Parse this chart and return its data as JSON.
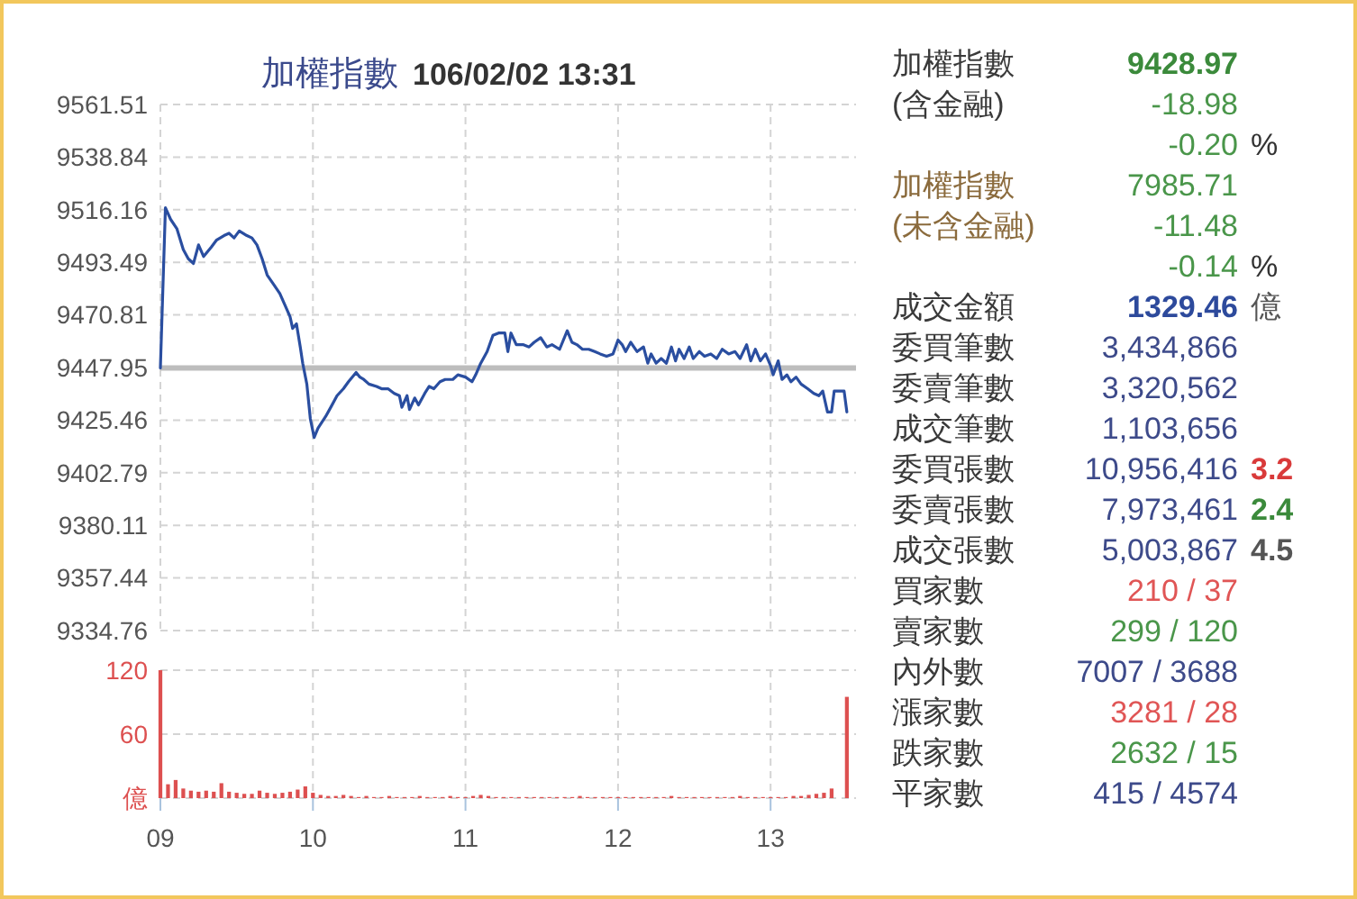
{
  "chart_data": [
    {
      "type": "line",
      "title": "加權指數",
      "subtitle": "106/02/02 13:31",
      "color": "#2a4ea0",
      "x": [
        9,
        9.033,
        9.067,
        9.108,
        9.15,
        9.183,
        9.217,
        9.25,
        9.283,
        9.333,
        9.367,
        9.417,
        9.45,
        9.483,
        9.517,
        9.567,
        9.6,
        9.633,
        9.667,
        9.7,
        9.742,
        9.783,
        9.817,
        9.85,
        9.867,
        9.892,
        9.917,
        9.933,
        9.96,
        9.983,
        10.008,
        10.033,
        10.083,
        10.117,
        10.158,
        10.2,
        10.233,
        10.283,
        10.308,
        10.333,
        10.367,
        10.417,
        10.45,
        10.492,
        10.533,
        10.567,
        10.583,
        10.617,
        10.633,
        10.667,
        10.692,
        10.733,
        10.762,
        10.793,
        10.833,
        10.867,
        10.917,
        10.95,
        11,
        11.043,
        11.067,
        11.1,
        11.142,
        11.18,
        11.217,
        11.258,
        11.278,
        11.298,
        11.333,
        11.377,
        11.417,
        11.45,
        11.493,
        11.533,
        11.567,
        11.617,
        11.667,
        11.698,
        11.73,
        11.767,
        11.808,
        11.847,
        11.883,
        11.925,
        11.967,
        12,
        12.027,
        12.05,
        12.083,
        12.125,
        12.167,
        12.195,
        12.217,
        12.25,
        12.283,
        12.317,
        12.35,
        12.377,
        12.4,
        12.433,
        12.467,
        12.493,
        12.533,
        12.567,
        12.608,
        12.647,
        12.683,
        12.725,
        12.767,
        12.8,
        12.843,
        12.87,
        12.9,
        12.933,
        12.967,
        13,
        13.017,
        13.05,
        13.075,
        13.107,
        13.133,
        13.167,
        13.2,
        13.243,
        13.283,
        13.317,
        13.342,
        13.373,
        13.4,
        13.417,
        13.482,
        13.5
      ],
      "values": [
        9448,
        9517,
        9512,
        9508,
        9499,
        9495,
        9493,
        9501,
        9496,
        9500,
        9503,
        9505,
        9506,
        9504,
        9507,
        9505,
        9504,
        9501,
        9495,
        9488,
        9484,
        9480,
        9475,
        9470,
        9465,
        9467,
        9457,
        9450,
        9441,
        9426,
        9418,
        9422,
        9427,
        9431,
        9436,
        9439,
        9442,
        9446,
        9444,
        9443,
        9441,
        9440,
        9439,
        9439,
        9437,
        9436,
        9431,
        9436,
        9430,
        9435,
        9432,
        9437,
        9440,
        9439,
        9442,
        9443,
        9443,
        9445,
        9444,
        9442,
        9445,
        9450,
        9455,
        9462,
        9463,
        9463,
        9455,
        9463,
        9458,
        9458,
        9457,
        9459,
        9461,
        9457,
        9458,
        9456,
        9464,
        9459,
        9458,
        9456,
        9456,
        9455,
        9454,
        9453,
        9454,
        9460,
        9458,
        9455,
        9459,
        9455,
        9457,
        9450,
        9454,
        9450,
        9452,
        9450,
        9457,
        9451,
        9456,
        9452,
        9457,
        9452,
        9455,
        9453,
        9454,
        9452,
        9456,
        9454,
        9455,
        9452,
        9458,
        9451,
        9456,
        9451,
        9454,
        9449,
        9445,
        9451,
        9443,
        9445,
        9442,
        9444,
        9441,
        9439,
        9437,
        9436,
        9438,
        9429,
        9429,
        9438,
        9438,
        9429
      ],
      "xlim": [
        9,
        13.56
      ],
      "ylim": [
        9334.76,
        9561.51
      ],
      "xticks": [
        9,
        10,
        11,
        12,
        13
      ],
      "yticks": [
        9334.76,
        9357.44,
        9380.11,
        9402.79,
        9425.46,
        9447.95,
        9470.81,
        9493.49,
        9516.16,
        9538.84,
        9561.51
      ],
      "tick_labels": "y",
      "grid": true,
      "ref_lines": [
        {
          "axis": "y",
          "value": 9447.95,
          "color": "#bdbdbd"
        }
      ]
    },
    {
      "type": "bar",
      "color": "#dd5050",
      "x": [
        9,
        9.05,
        9.1,
        9.15,
        9.2,
        9.25,
        9.3,
        9.35,
        9.4,
        9.45,
        9.5,
        9.55,
        9.6,
        9.65,
        9.7,
        9.75,
        9.8,
        9.85,
        9.9,
        9.95,
        10,
        10.05,
        10.1,
        10.15,
        10.2,
        10.25,
        10.3,
        10.35,
        10.4,
        10.45,
        10.5,
        10.55,
        10.6,
        10.65,
        10.7,
        10.75,
        10.8,
        10.85,
        10.9,
        10.95,
        11,
        11.05,
        11.1,
        11.15,
        11.2,
        11.25,
        11.3,
        11.35,
        11.4,
        11.45,
        11.5,
        11.55,
        11.6,
        11.65,
        11.7,
        11.75,
        11.8,
        11.85,
        11.9,
        11.95,
        12,
        12.05,
        12.1,
        12.15,
        12.2,
        12.25,
        12.3,
        12.35,
        12.4,
        12.45,
        12.5,
        12.55,
        12.6,
        12.65,
        12.7,
        12.75,
        12.8,
        12.85,
        12.9,
        12.95,
        13,
        13.05,
        13.1,
        13.15,
        13.2,
        13.25,
        13.3,
        13.35,
        13.4,
        13.45,
        13.5
      ],
      "values": [
        120,
        13,
        17,
        9,
        7,
        6,
        7,
        6,
        14,
        6,
        5,
        4,
        4,
        7,
        5,
        4,
        5,
        6,
        8,
        11,
        5,
        3,
        2,
        2,
        3,
        2,
        1,
        2,
        1,
        1,
        2,
        1,
        1,
        1,
        2,
        1,
        1,
        1,
        2,
        1,
        1,
        2,
        3,
        2,
        1,
        1,
        1,
        1,
        1,
        1,
        1,
        1,
        1,
        1,
        1,
        2,
        1,
        1,
        1,
        1,
        1,
        1,
        1,
        1,
        1,
        1,
        1,
        2,
        1,
        1,
        1,
        1,
        1,
        1,
        1,
        1,
        2,
        1,
        1,
        1,
        1,
        1,
        1,
        2,
        2,
        3,
        4,
        5,
        9,
        null,
        95
      ],
      "xlim": [
        9,
        13.56
      ],
      "ylim": [
        0,
        120
      ],
      "xticks": [
        {
          "value": 9,
          "label": "09"
        },
        {
          "value": 10,
          "label": "10"
        },
        {
          "value": 11,
          "label": "11"
        },
        {
          "value": 12,
          "label": "12"
        },
        {
          "value": 13,
          "label": "13"
        }
      ],
      "yticks": [
        {
          "value": 0,
          "label": "億"
        },
        60,
        120
      ],
      "grid": true
    },
    {
      "type": "other",
      "annotations": [
        "加權指數",
        "9428.97",
        "(含金融)",
        "-18.98",
        "-0.20",
        "%",
        "加權指數",
        "7985.71",
        "(未含金融)",
        "-11.48",
        "-0.14",
        "%",
        "成交金額",
        "1329.46",
        "億",
        "委買筆數",
        "3,434,866",
        "委賣筆數",
        "3,320,562",
        "成交筆數",
        "1,103,656",
        "委買張數",
        "10,956,416",
        "3.2",
        "委賣張數",
        "7,973,461",
        "2.4",
        "成交張數",
        "5,003,867",
        "4.5",
        "買家數",
        "210 / 37",
        "賣家數",
        "299 / 120",
        "內外數",
        "7007 / 3688",
        "漲家數",
        "3281 / 28",
        "跌家數",
        "2632 / 15",
        "平家數",
        "415 / 4574"
      ]
    }
  ]
}
